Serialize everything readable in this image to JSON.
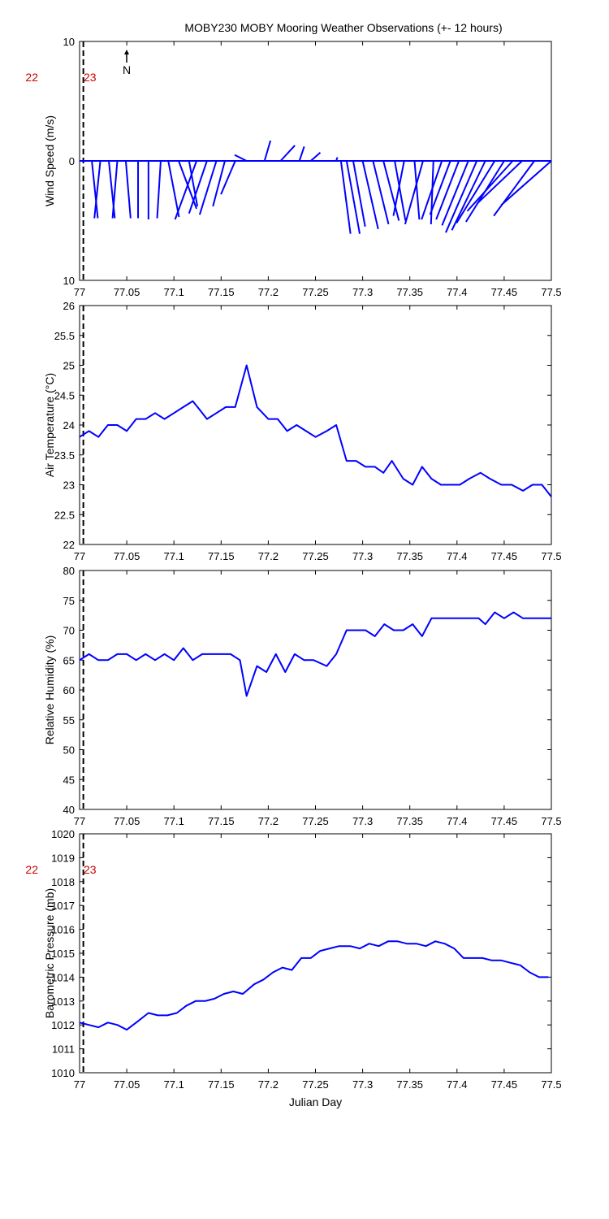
{
  "title": "MOBY230 MOBY Mooring Weather Observations (+- 12 hours)",
  "colors": {
    "series": "#0000ff",
    "axis": "#000000",
    "day_label": "#cc0000"
  },
  "chart_data": [
    {
      "type": "vector",
      "id": "wind",
      "ylabel": "Wind Speed (m/s)",
      "xlabel": "Julian Day",
      "xlim": [
        77,
        77.5
      ],
      "ylim": [
        -10,
        10
      ],
      "yticks": [
        {
          "value": 10,
          "label": "10"
        },
        {
          "value": 0,
          "label": "0"
        },
        {
          "value": -10,
          "label": "10"
        }
      ],
      "xticks": [
        "77",
        "77.05",
        "77.1",
        "77.15",
        "77.2",
        "77.25",
        "77.3",
        "77.35",
        "77.4",
        "77.45",
        "77.5"
      ],
      "compass_label": "N",
      "day_boundary": 77.004,
      "day_labels": [
        "22",
        "23"
      ],
      "vectors": [
        {
          "x": 77.0,
          "u": 0.0,
          "v": 0.0
        },
        {
          "x": 77.013,
          "u": 0.5,
          "v": -4.8
        },
        {
          "x": 77.022,
          "u": -0.5,
          "v": -4.8
        },
        {
          "x": 77.031,
          "u": 0.5,
          "v": -4.8
        },
        {
          "x": 77.04,
          "u": -0.4,
          "v": -4.8
        },
        {
          "x": 77.049,
          "u": 0.4,
          "v": -4.8
        },
        {
          "x": 77.062,
          "u": 0.0,
          "v": -4.8
        },
        {
          "x": 77.073,
          "u": 0.0,
          "v": -4.9
        },
        {
          "x": 77.086,
          "u": -0.3,
          "v": -4.8
        },
        {
          "x": 77.094,
          "u": 0.9,
          "v": -4.7
        },
        {
          "x": 77.105,
          "u": 1.5,
          "v": -4.0
        },
        {
          "x": 77.116,
          "u": 0.7,
          "v": -3.8
        },
        {
          "x": 77.124,
          "u": -1.8,
          "v": -4.9
        },
        {
          "x": 77.135,
          "u": -1.5,
          "v": -4.4
        },
        {
          "x": 77.145,
          "u": -1.4,
          "v": -4.5
        },
        {
          "x": 77.154,
          "u": -1.0,
          "v": -3.8
        },
        {
          "x": 77.165,
          "u": -1.2,
          "v": -2.8
        },
        {
          "x": 77.177,
          "u": -1.0,
          "v": 0.5
        },
        {
          "x": 77.196,
          "u": 0.5,
          "v": 1.7
        },
        {
          "x": 77.213,
          "u": 1.2,
          "v": 1.3
        },
        {
          "x": 77.233,
          "u": 0.4,
          "v": 1.2
        },
        {
          "x": 77.245,
          "u": 0.8,
          "v": 0.7
        },
        {
          "x": 77.272,
          "u": 0.1,
          "v": 0.3
        },
        {
          "x": 77.277,
          "u": 0.8,
          "v": -6.1
        },
        {
          "x": 77.283,
          "u": 1.1,
          "v": -6.1
        },
        {
          "x": 77.29,
          "u": 1.0,
          "v": -5.5
        },
        {
          "x": 77.3,
          "u": 1.3,
          "v": -5.7
        },
        {
          "x": 77.311,
          "u": 1.3,
          "v": -5.3
        },
        {
          "x": 77.322,
          "u": 1.3,
          "v": -5.0
        },
        {
          "x": 77.334,
          "u": 0.9,
          "v": -5.0
        },
        {
          "x": 77.344,
          "u": -0.9,
          "v": -4.6
        },
        {
          "x": 77.355,
          "u": 0.4,
          "v": -4.9
        },
        {
          "x": 77.364,
          "u": -1.5,
          "v": -5.3
        },
        {
          "x": 77.375,
          "u": -0.2,
          "v": -5.3
        },
        {
          "x": 77.384,
          "u": -1.7,
          "v": -4.9
        },
        {
          "x": 77.393,
          "u": -1.7,
          "v": -4.5
        },
        {
          "x": 77.402,
          "u": -1.9,
          "v": -4.9
        },
        {
          "x": 77.412,
          "u": -2.2,
          "v": -5.4
        },
        {
          "x": 77.421,
          "u": -2.6,
          "v": -6.0
        },
        {
          "x": 77.43,
          "u": -2.8,
          "v": -5.8
        },
        {
          "x": 77.44,
          "u": -3.2,
          "v": -5.2
        },
        {
          "x": 77.45,
          "u": -3.2,
          "v": -5.1
        },
        {
          "x": 77.459,
          "u": -3.8,
          "v": -4.2
        },
        {
          "x": 77.469,
          "u": -3.8,
          "v": -3.6
        },
        {
          "x": 77.482,
          "u": -3.4,
          "v": -4.6
        },
        {
          "x": 77.5,
          "u": -4.2,
          "v": -3.7
        }
      ]
    },
    {
      "type": "line",
      "id": "air_temp",
      "ylabel": "Air Temperature (°C)",
      "xlabel": "",
      "xlim": [
        77,
        77.5
      ],
      "ylim": [
        22,
        26
      ],
      "yticks": [
        {
          "value": 26,
          "label": "26"
        },
        {
          "value": 25.5,
          "label": "25.5"
        },
        {
          "value": 25,
          "label": "25"
        },
        {
          "value": 24.5,
          "label": "24.5"
        },
        {
          "value": 24,
          "label": "24"
        },
        {
          "value": 23.5,
          "label": "23.5"
        },
        {
          "value": 23,
          "label": "23"
        },
        {
          "value": 22.5,
          "label": "22.5"
        },
        {
          "value": 22,
          "label": "22"
        }
      ],
      "xticks": [
        "77",
        "77.05",
        "77.1",
        "77.15",
        "77.2",
        "77.25",
        "77.3",
        "77.35",
        "77.4",
        "77.45",
        "77.5"
      ],
      "day_boundary": 77.004,
      "day_labels": [],
      "x": [
        77.0,
        77.01,
        77.02,
        77.03,
        77.04,
        77.05,
        77.06,
        77.07,
        77.08,
        77.09,
        77.1,
        77.11,
        77.12,
        77.125,
        77.135,
        77.145,
        77.155,
        77.165,
        77.177,
        77.188,
        77.2,
        77.21,
        77.22,
        77.23,
        77.24,
        77.25,
        77.262,
        77.272,
        77.283,
        77.293,
        77.303,
        77.313,
        77.322,
        77.331,
        77.343,
        77.353,
        77.363,
        77.373,
        77.383,
        77.393,
        77.403,
        77.413,
        77.425,
        77.435,
        77.447,
        77.458,
        77.47,
        77.48,
        77.49,
        77.5
      ],
      "y": [
        23.8,
        23.9,
        23.8,
        24.0,
        24.0,
        23.9,
        24.1,
        24.1,
        24.2,
        24.1,
        24.2,
        24.3,
        24.4,
        24.3,
        24.1,
        24.2,
        24.3,
        24.3,
        25.0,
        24.3,
        24.1,
        24.1,
        23.9,
        24.0,
        23.9,
        23.8,
        23.9,
        24.0,
        23.4,
        23.4,
        23.3,
        23.3,
        23.2,
        23.4,
        23.1,
        23.0,
        23.3,
        23.1,
        23.0,
        23.0,
        23.0,
        23.1,
        23.2,
        23.1,
        23.0,
        23.0,
        22.9,
        23.0,
        23.0,
        22.8
      ]
    },
    {
      "type": "line",
      "id": "humidity",
      "ylabel": "Relative Humidity (%)",
      "xlabel": "",
      "xlim": [
        77,
        77.5
      ],
      "ylim": [
        40,
        80
      ],
      "yticks": [
        {
          "value": 80,
          "label": "80"
        },
        {
          "value": 75,
          "label": "75"
        },
        {
          "value": 70,
          "label": "70"
        },
        {
          "value": 65,
          "label": "65"
        },
        {
          "value": 60,
          "label": "60"
        },
        {
          "value": 55,
          "label": "55"
        },
        {
          "value": 50,
          "label": "50"
        },
        {
          "value": 45,
          "label": "45"
        },
        {
          "value": 40,
          "label": "40"
        }
      ],
      "xticks": [
        "77",
        "77.05",
        "77.1",
        "77.15",
        "77.2",
        "77.25",
        "77.3",
        "77.35",
        "77.4",
        "77.45",
        "77.5"
      ],
      "day_boundary": 77.004,
      "day_labels": [],
      "x": [
        77.0,
        77.01,
        77.02,
        77.03,
        77.04,
        77.05,
        77.06,
        77.07,
        77.08,
        77.09,
        77.1,
        77.11,
        77.12,
        77.13,
        77.14,
        77.15,
        77.16,
        77.17,
        77.177,
        77.188,
        77.198,
        77.208,
        77.218,
        77.228,
        77.238,
        77.248,
        77.262,
        77.272,
        77.283,
        77.293,
        77.303,
        77.313,
        77.323,
        77.333,
        77.343,
        77.353,
        77.363,
        77.373,
        77.383,
        77.393,
        77.403,
        77.413,
        77.423,
        77.43,
        77.44,
        77.45,
        77.46,
        77.47,
        77.48,
        77.49,
        77.5
      ],
      "y": [
        65,
        66,
        65,
        65,
        66,
        66,
        65,
        66,
        65,
        66,
        65,
        67,
        65,
        66,
        66,
        66,
        66,
        65,
        59,
        64,
        63,
        66,
        63,
        66,
        65,
        65,
        64,
        66,
        70,
        70,
        70,
        69,
        71,
        70,
        70,
        71,
        69,
        72,
        72,
        72,
        72,
        72,
        72,
        71,
        73,
        72,
        73,
        72,
        72,
        72,
        72
      ]
    },
    {
      "type": "line",
      "id": "pressure",
      "ylabel": "Barometric Pressure (mb)",
      "xlabel": "Julian Day",
      "xlim": [
        77,
        77.5
      ],
      "ylim": [
        1010,
        1020
      ],
      "yticks": [
        {
          "value": 1020,
          "label": "1020"
        },
        {
          "value": 1019,
          "label": "1019"
        },
        {
          "value": 1018,
          "label": "1018"
        },
        {
          "value": 1017,
          "label": "1017"
        },
        {
          "value": 1016,
          "label": "1016"
        },
        {
          "value": 1015,
          "label": "1015"
        },
        {
          "value": 1014,
          "label": "1014"
        },
        {
          "value": 1013,
          "label": "1013"
        },
        {
          "value": 1012,
          "label": "1012"
        },
        {
          "value": 1011,
          "label": "1011"
        },
        {
          "value": 1010,
          "label": "1010"
        }
      ],
      "xticks": [
        "77",
        "77.05",
        "77.1",
        "77.15",
        "77.2",
        "77.25",
        "77.3",
        "77.35",
        "77.4",
        "77.45",
        "77.5"
      ],
      "day_boundary": 77.004,
      "day_labels": [
        "22",
        "23"
      ],
      "x": [
        77.0,
        77.01,
        77.02,
        77.03,
        77.04,
        77.05,
        77.06,
        77.073,
        77.083,
        77.093,
        77.103,
        77.113,
        77.123,
        77.133,
        77.143,
        77.153,
        77.163,
        77.173,
        77.185,
        77.195,
        77.205,
        77.215,
        77.225,
        77.235,
        77.245,
        77.255,
        77.265,
        77.275,
        77.287,
        77.297,
        77.307,
        77.317,
        77.327,
        77.337,
        77.347,
        77.357,
        77.367,
        77.377,
        77.387,
        77.397,
        77.407,
        77.417,
        77.427,
        77.437,
        77.447,
        77.457,
        77.467,
        77.477,
        77.487,
        77.497
      ],
      "y": [
        1012.1,
        1012.0,
        1011.9,
        1012.1,
        1012.0,
        1011.8,
        1012.1,
        1012.5,
        1012.4,
        1012.4,
        1012.5,
        1012.8,
        1013.0,
        1013.0,
        1013.1,
        1013.3,
        1013.4,
        1013.3,
        1013.7,
        1013.9,
        1014.2,
        1014.4,
        1014.3,
        1014.8,
        1014.8,
        1015.1,
        1015.2,
        1015.3,
        1015.3,
        1015.2,
        1015.4,
        1015.3,
        1015.5,
        1015.5,
        1015.4,
        1015.4,
        1015.3,
        1015.5,
        1015.4,
        1015.2,
        1014.8,
        1014.8,
        1014.8,
        1014.7,
        1014.7,
        1014.6,
        1014.5,
        1014.2,
        1014.0,
        1014.0
      ]
    }
  ]
}
